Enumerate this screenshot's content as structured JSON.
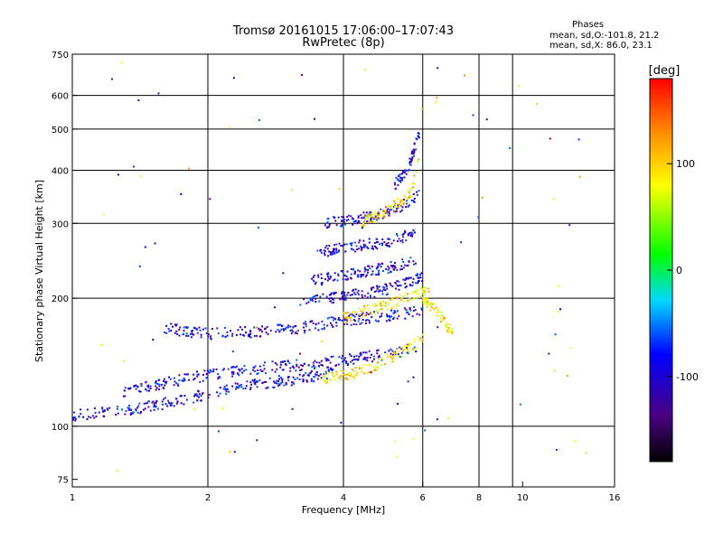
{
  "header": {
    "title_line1": "Tromsø 20161015 17:06:00–17:07:43",
    "title_line2": "RwPretec (8p)"
  },
  "phase_box": {
    "title": "Phases",
    "line_o": "mean, sd,O:-101.8, 21.2",
    "line_x": "mean, sd,X:  86.0, 23.1"
  },
  "colorbar": {
    "label": "[deg]",
    "ticks": [
      "100",
      "0",
      "-100"
    ],
    "range": [
      -180,
      180
    ]
  },
  "chart_data": {
    "type": "scatter",
    "title": "Tromsø 20161015 17:06:00–17:07:43",
    "subtitle": "RwPretec (8p)",
    "xlabel": "Frequency [MHz]",
    "ylabel": "Stationary phase Virtual Height [km]",
    "x_scale": "log",
    "y_scale": "log",
    "xlim": [
      1,
      16
    ],
    "ylim": [
      72,
      750
    ],
    "x_ticks": [
      1,
      2,
      4,
      6,
      8,
      10,
      16
    ],
    "x_tick_labels": [
      "1",
      "2",
      "4",
      "6",
      "8",
      "10",
      "16"
    ],
    "y_ticks": [
      75,
      100,
      200,
      300,
      400,
      500,
      600,
      750
    ],
    "y_tick_labels": [
      "75",
      "100",
      "200",
      "300",
      "400",
      "500",
      "600",
      "750"
    ],
    "grid_x": [
      2,
      4,
      6,
      8,
      9.5
    ],
    "grid_y": [
      100,
      200,
      300,
      400,
      500,
      600
    ],
    "colormap": "rainbow (black-purple-blue-cyan-green-yellow-red)",
    "color_value": "phase [deg]",
    "traces": [
      {
        "mode": "O",
        "x": [
          1.0,
          1.4,
          1.8,
          2.2,
          2.6,
          3.0,
          3.4,
          3.8
        ],
        "y": [
          106,
          110,
          116,
          122,
          126,
          128,
          131,
          134
        ]
      },
      {
        "mode": "O",
        "x": [
          1.3,
          1.7,
          2.2,
          2.8,
          3.4,
          4.0,
          4.6,
          5.4,
          5.8
        ],
        "y": [
          121,
          128,
          134,
          138,
          140,
          143,
          146,
          150,
          153
        ]
      },
      {
        "mode": "O",
        "x": [
          1.6,
          2.0,
          2.6,
          3.2,
          3.8,
          4.4,
          5.0,
          5.6,
          6.0
        ],
        "y": [
          170,
          165,
          167,
          170,
          176,
          179,
          182,
          185,
          188
        ]
      },
      {
        "mode": "O",
        "x": [
          3.2,
          3.8,
          4.4,
          5.0,
          5.6,
          6.0
        ],
        "y": [
          196,
          200,
          205,
          210,
          218,
          225
        ]
      },
      {
        "mode": "O",
        "x": [
          3.4,
          4.0,
          4.6,
          5.2,
          5.8
        ],
        "y": [
          220,
          226,
          232,
          238,
          246
        ]
      },
      {
        "mode": "O",
        "x": [
          3.5,
          4.0,
          4.6,
          5.2,
          5.8
        ],
        "y": [
          256,
          262,
          268,
          274,
          285
        ]
      },
      {
        "mode": "O",
        "x": [
          3.6,
          4.2,
          4.8,
          5.4,
          5.9
        ],
        "y": [
          300,
          305,
          315,
          330,
          352
        ]
      },
      {
        "mode": "O",
        "x": [
          5.2,
          5.6,
          5.9
        ],
        "y": [
          370,
          410,
          490
        ]
      },
      {
        "mode": "X",
        "x": [
          3.6,
          4.2,
          4.8,
          5.4,
          6.0
        ],
        "y": [
          130,
          133,
          140,
          150,
          160
        ]
      },
      {
        "mode": "X",
        "x": [
          4.0,
          4.6,
          5.2,
          5.8,
          6.2
        ],
        "y": [
          180,
          188,
          196,
          206,
          212
        ]
      },
      {
        "mode": "X",
        "x": [
          4.4,
          5.0,
          5.6,
          5.9
        ],
        "y": [
          300,
          320,
          350,
          420
        ]
      },
      {
        "mode": "X",
        "x": [
          6.0,
          6.5,
          7.0
        ],
        "y": [
          200,
          185,
          165
        ]
      }
    ]
  }
}
